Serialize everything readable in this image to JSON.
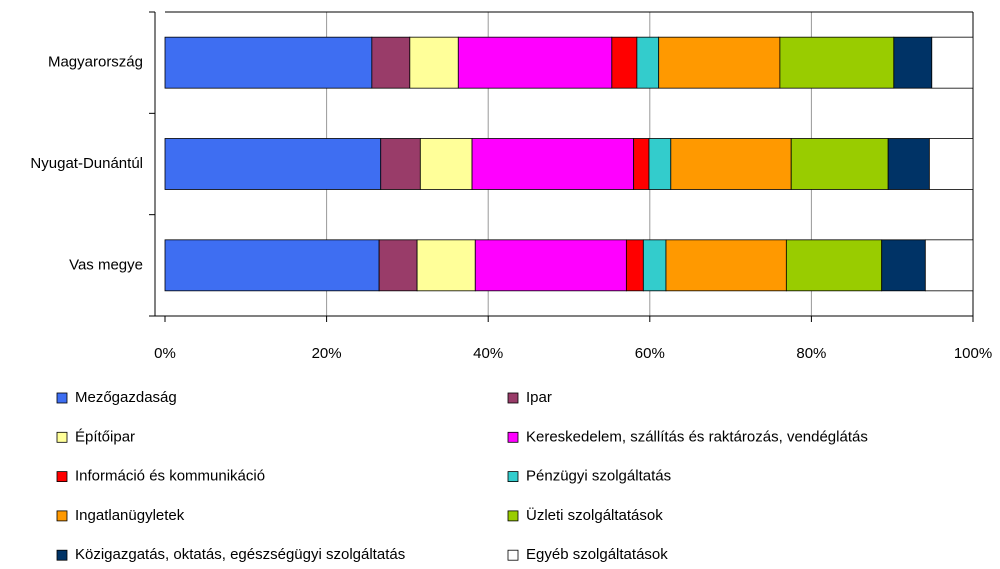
{
  "chart_data": {
    "type": "stacked-barh",
    "categories": [
      "Magyarország",
      "Nyugat-Dunántúl",
      "Vas megye"
    ],
    "series": [
      {
        "name": "Mezőgazdaság",
        "color": "#3e6ef2",
        "values": [
          25.6,
          26.7,
          26.5
        ]
      },
      {
        "name": "Ipar",
        "color": "#993c69",
        "values": [
          4.7,
          4.9,
          4.7
        ]
      },
      {
        "name": "Építőipar",
        "color": "#ffff99",
        "values": [
          6.0,
          6.4,
          7.2
        ]
      },
      {
        "name": "Kereskedelem, szállítás és raktározás, vendéglátás",
        "color": "#ff00ff",
        "values": [
          19.0,
          20.0,
          18.7
        ]
      },
      {
        "name": "Információ és kommunikáció",
        "color": "#ff0000",
        "values": [
          3.1,
          1.9,
          2.1
        ]
      },
      {
        "name": "Pénzügyi szolgáltatás",
        "color": "#33cccc",
        "values": [
          2.7,
          2.7,
          2.8
        ]
      },
      {
        "name": "Ingatlanügyletek",
        "color": "#ff9900",
        "values": [
          15.0,
          14.9,
          14.9
        ]
      },
      {
        "name": "Üzleti szolgáltatások",
        "color": "#99cc00",
        "values": [
          14.1,
          12.0,
          11.8
        ]
      },
      {
        "name": "Közigazgatás, oktatás, egészségügyi szolgáltatás",
        "color": "#003366",
        "values": [
          4.7,
          5.1,
          5.4
        ]
      },
      {
        "name": "Egyéb szolgáltatások",
        "color": "#ffffff",
        "values": [
          5.1,
          5.4,
          5.9
        ]
      }
    ],
    "xlim": [
      0,
      100
    ],
    "xticks": [
      {
        "value": 0,
        "label": "0%"
      },
      {
        "value": 20,
        "label": "20%"
      },
      {
        "value": 40,
        "label": "40%"
      },
      {
        "value": 60,
        "label": "60%"
      },
      {
        "value": 80,
        "label": "80%"
      },
      {
        "value": 100,
        "label": "100%"
      }
    ],
    "grid": true
  }
}
